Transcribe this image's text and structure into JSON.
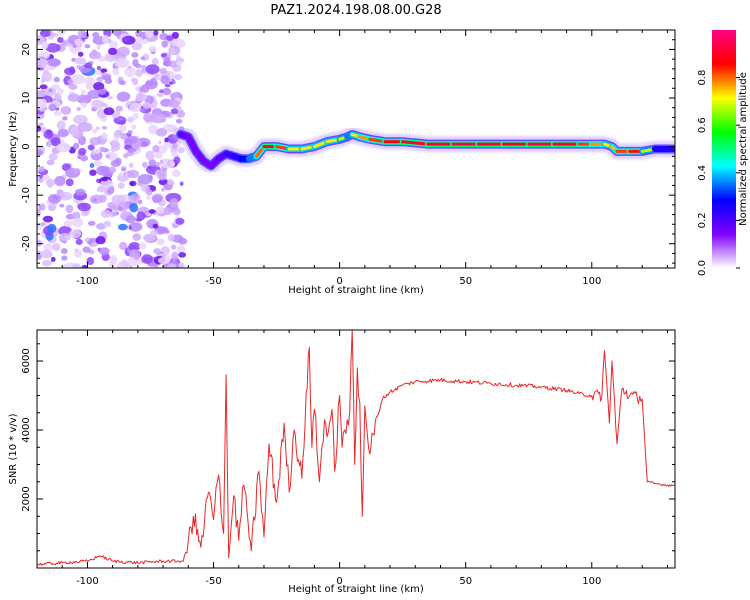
{
  "chart_data": [
    {
      "type": "heatmap",
      "title": "PAZ1.2024.198.08.00.G28",
      "xlabel": "Height of straight line (km)",
      "ylabel": "Frequency (Hz)",
      "xlim": [
        -120,
        133
      ],
      "ylim": [
        -25,
        24
      ],
      "xticks": [
        -100,
        -50,
        0,
        50,
        100
      ],
      "yticks": [
        20,
        10,
        0,
        -10,
        -20
      ],
      "grid": false,
      "colorbar": {
        "label": "Normalized spectral amplitude",
        "range": [
          0,
          1
        ],
        "ticks": [
          0.0,
          0.2,
          0.4,
          0.6,
          0.8
        ],
        "colormap": [
          "#ffffff",
          "#7f00ff",
          "#0000ff",
          "#00ffff",
          "#00ff00",
          "#ffff00",
          "#ff0000",
          "#ff0080"
        ]
      },
      "noise_region": {
        "x": [
          -120,
          -62
        ],
        "y": [
          -25,
          24
        ]
      },
      "ridge": {
        "x": [
          -63,
          -60,
          -57,
          -54,
          -51,
          -48,
          -45,
          -42,
          -39,
          -36,
          -33,
          -30,
          -25,
          -20,
          -15,
          -10,
          -5,
          0,
          3,
          5,
          8,
          12,
          18,
          25,
          35,
          45,
          55,
          65,
          75,
          85,
          95,
          100,
          105,
          108,
          110,
          115,
          120,
          125,
          133
        ],
        "freq": [
          2.5,
          2.0,
          -1.0,
          -3.0,
          -4.0,
          -2.5,
          -1.5,
          -2.0,
          -2.5,
          -2.5,
          -2.0,
          0.0,
          0.0,
          -0.5,
          -0.5,
          0.0,
          1.0,
          1.5,
          2.0,
          2.5,
          2.0,
          1.5,
          1.0,
          1.0,
          0.5,
          0.5,
          0.5,
          0.5,
          0.5,
          0.5,
          0.5,
          0.5,
          0.5,
          0.0,
          -1.0,
          -1.0,
          -1.0,
          -0.5,
          -0.5
        ],
        "amplitude": [
          0.35,
          0.3,
          0.25,
          0.3,
          0.25,
          0.3,
          0.35,
          0.4,
          0.45,
          0.6,
          0.7,
          0.9,
          0.9,
          0.75,
          0.7,
          0.75,
          0.7,
          0.75,
          0.6,
          0.7,
          0.75,
          0.8,
          0.85,
          0.9,
          0.9,
          0.9,
          0.95,
          0.85,
          0.9,
          0.95,
          0.85,
          0.8,
          0.75,
          0.7,
          0.8,
          0.85,
          0.85,
          0.5,
          0.4
        ]
      }
    },
    {
      "type": "line",
      "xlabel": "Height of straight line (km)",
      "ylabel": "SNR (10 * v/v)",
      "xlim": [
        -120,
        133
      ],
      "ylim": [
        0,
        6900
      ],
      "xticks": [
        -100,
        -50,
        0,
        50,
        100
      ],
      "yticks": [
        2000,
        4000,
        6000
      ],
      "grid": false,
      "series": [
        {
          "color": "#e8282a",
          "x": [
            -120,
            -110,
            -100,
            -95,
            -90,
            -80,
            -70,
            -62,
            -60,
            -58,
            -55,
            -52,
            -50,
            -48,
            -46,
            -45,
            -44,
            -42,
            -40,
            -38,
            -35,
            -32,
            -30,
            -28,
            -25,
            -22,
            -20,
            -18,
            -15,
            -12,
            -11,
            -10,
            -8,
            -6,
            -5,
            -3,
            -2,
            0,
            1,
            2,
            4,
            5,
            6,
            7,
            8,
            9,
            10,
            12,
            15,
            17,
            20,
            25,
            30,
            40,
            50,
            60,
            70,
            80,
            90,
            95,
            100,
            104,
            105,
            107,
            108,
            110,
            112,
            115,
            118,
            120,
            122,
            125,
            130,
            133
          ],
          "values": [
            100,
            150,
            200,
            350,
            200,
            150,
            200,
            200,
            800,
            1500,
            600,
            2200,
            1400,
            2700,
            1000,
            5600,
            300,
            2100,
            800,
            2400,
            500,
            2800,
            900,
            3600,
            1900,
            4200,
            2200,
            4000,
            2600,
            6400,
            3500,
            4600,
            2500,
            4300,
            3800,
            4600,
            2800,
            5000,
            3500,
            4000,
            4500,
            6900,
            3000,
            5800,
            4800,
            1500,
            4700,
            3300,
            4400,
            4900,
            5100,
            5300,
            5400,
            5450,
            5400,
            5350,
            5300,
            5250,
            5150,
            5050,
            5000,
            5000,
            6300,
            4200,
            6000,
            3600,
            5200,
            5000,
            4950,
            4900,
            2500,
            2450,
            2400,
            2400
          ]
        }
      ]
    }
  ]
}
